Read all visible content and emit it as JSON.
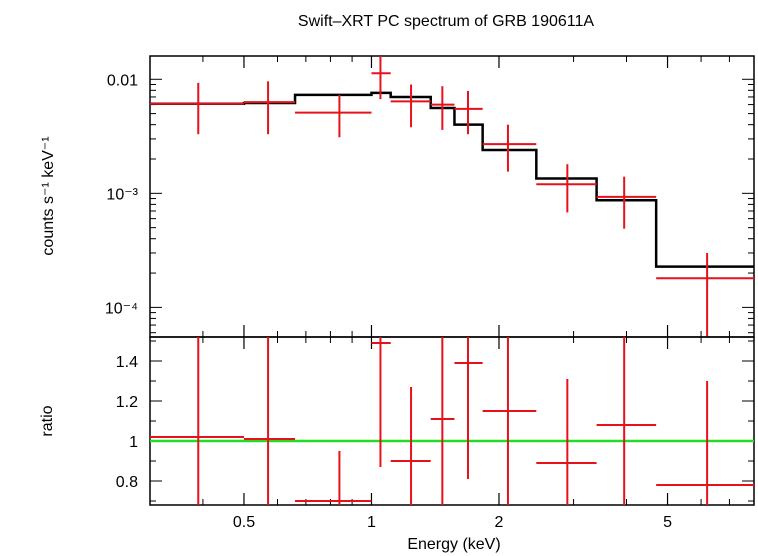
{
  "chart_data": [
    {
      "type": "scatter",
      "title": "Swift–XRT PC spectrum of GRB 190611A",
      "ylabel": "counts s⁻¹ keV⁻¹",
      "xscale": "log",
      "yscale": "log",
      "xlim": [
        0.3,
        8.0
      ],
      "ylim": [
        5.5e-05,
        0.016
      ],
      "ytick_labels": [
        "0.01",
        "10⁻³",
        "10⁻⁴"
      ],
      "ytick_values": [
        0.01,
        0.001,
        0.0001
      ],
      "series": [
        {
          "kind": "data-with-errors",
          "color": "#e8101a",
          "points": [
            {
              "xlo": 0.3,
              "x": 0.39,
              "xhi": 0.5,
              "y": 0.0061,
              "ylo": 0.0033,
              "yhi": 0.0093
            },
            {
              "xlo": 0.5,
              "x": 0.57,
              "xhi": 0.66,
              "y": 0.0063,
              "ylo": 0.0033,
              "yhi": 0.0096
            },
            {
              "xlo": 0.66,
              "x": 0.84,
              "xhi": 1.0,
              "y": 0.0051,
              "ylo": 0.0031,
              "yhi": 0.0073
            },
            {
              "xlo": 1.0,
              "x": 1.05,
              "xhi": 1.11,
              "y": 0.0113,
              "ylo": 0.0067,
              "yhi": 0.0163
            },
            {
              "xlo": 1.11,
              "x": 1.24,
              "xhi": 1.38,
              "y": 0.0064,
              "ylo": 0.0038,
              "yhi": 0.009
            },
            {
              "xlo": 1.38,
              "x": 1.47,
              "xhi": 1.57,
              "y": 0.006,
              "ylo": 0.0036,
              "yhi": 0.0087
            },
            {
              "xlo": 1.57,
              "x": 1.69,
              "xhi": 1.83,
              "y": 0.0055,
              "ylo": 0.0033,
              "yhi": 0.0079
            },
            {
              "xlo": 1.83,
              "x": 2.1,
              "xhi": 2.45,
              "y": 0.0027,
              "ylo": 0.00155,
              "yhi": 0.004
            },
            {
              "xlo": 2.45,
              "x": 2.9,
              "xhi": 3.4,
              "y": 0.0012,
              "ylo": 0.00068,
              "yhi": 0.0018
            },
            {
              "xlo": 3.4,
              "x": 3.95,
              "xhi": 4.7,
              "y": 0.00093,
              "ylo": 0.00049,
              "yhi": 0.0014
            },
            {
              "xlo": 4.7,
              "x": 6.2,
              "xhi": 8.0,
              "y": 0.00018,
              "ylo": 5.5e-05,
              "yhi": 0.0003
            }
          ]
        },
        {
          "kind": "model-step",
          "color": "#000000",
          "steps": [
            {
              "xlo": 0.3,
              "xhi": 0.5,
              "y": 0.0061
            },
            {
              "xlo": 0.5,
              "xhi": 0.66,
              "y": 0.0062
            },
            {
              "xlo": 0.66,
              "xhi": 1.0,
              "y": 0.0073
            },
            {
              "xlo": 1.0,
              "xhi": 1.11,
              "y": 0.0076
            },
            {
              "xlo": 1.11,
              "xhi": 1.38,
              "y": 0.007
            },
            {
              "xlo": 1.38,
              "xhi": 1.57,
              "y": 0.0056
            },
            {
              "xlo": 1.57,
              "xhi": 1.83,
              "y": 0.004
            },
            {
              "xlo": 1.83,
              "xhi": 2.45,
              "y": 0.0024
            },
            {
              "xlo": 2.45,
              "xhi": 3.4,
              "y": 0.00135
            },
            {
              "xlo": 3.4,
              "xhi": 4.7,
              "y": 0.00087
            },
            {
              "xlo": 4.7,
              "xhi": 8.0,
              "y": 0.000228
            }
          ]
        }
      ]
    },
    {
      "type": "scatter",
      "xlabel": "Energy (keV)",
      "ylabel": "ratio",
      "xscale": "log",
      "xlim": [
        0.3,
        8.0
      ],
      "ylim": [
        0.68,
        1.52
      ],
      "xtick_labels": [
        "0.5",
        "1",
        "2",
        "5"
      ],
      "xtick_values": [
        0.5,
        1,
        2,
        5
      ],
      "ytick_labels": [
        "0.8",
        "1",
        "1.2",
        "1.4"
      ],
      "ytick_values": [
        0.8,
        1.0,
        1.2,
        1.4
      ],
      "reference_line": {
        "y": 1.0,
        "color": "#22dd22"
      },
      "series": [
        {
          "kind": "ratio-with-errors",
          "color": "#e8101a",
          "points": [
            {
              "xlo": 0.3,
              "x": 0.39,
              "xhi": 0.5,
              "y": 1.02,
              "ylo": 0.5,
              "yhi": 1.52
            },
            {
              "xlo": 0.5,
              "x": 0.57,
              "xhi": 0.66,
              "y": 1.01,
              "ylo": 0.5,
              "yhi": 1.52
            },
            {
              "xlo": 0.66,
              "x": 0.84,
              "xhi": 1.0,
              "y": 0.7,
              "ylo": 0.45,
              "yhi": 0.95
            },
            {
              "xlo": 1.0,
              "x": 1.05,
              "xhi": 1.11,
              "y": 1.49,
              "ylo": 0.87,
              "yhi": 1.52
            },
            {
              "xlo": 1.11,
              "x": 1.24,
              "xhi": 1.38,
              "y": 0.9,
              "ylo": 0.53,
              "yhi": 1.27
            },
            {
              "xlo": 1.38,
              "x": 1.47,
              "xhi": 1.57,
              "y": 1.11,
              "ylo": 0.67,
              "yhi": 1.52
            },
            {
              "xlo": 1.57,
              "x": 1.69,
              "xhi": 1.83,
              "y": 1.39,
              "ylo": 0.81,
              "yhi": 1.52
            },
            {
              "xlo": 1.83,
              "x": 2.1,
              "xhi": 2.45,
              "y": 1.15,
              "ylo": 0.67,
              "yhi": 1.52
            },
            {
              "xlo": 2.45,
              "x": 2.9,
              "xhi": 3.4,
              "y": 0.89,
              "ylo": 0.5,
              "yhi": 1.31
            },
            {
              "xlo": 3.4,
              "x": 3.95,
              "xhi": 4.7,
              "y": 1.08,
              "ylo": 0.57,
              "yhi": 1.52
            },
            {
              "xlo": 4.7,
              "x": 6.2,
              "xhi": 8.0,
              "y": 0.78,
              "ylo": 0.26,
              "yhi": 1.3
            }
          ]
        }
      ]
    }
  ]
}
